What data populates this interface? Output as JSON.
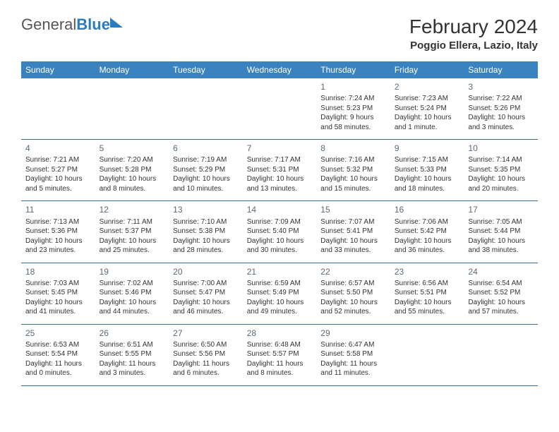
{
  "logo": {
    "text_gray": "General",
    "text_blue": "Blue"
  },
  "title": "February 2024",
  "location": "Poggio Ellera, Lazio, Italy",
  "colors": {
    "header_bg": "#3b83c0",
    "header_text": "#ffffff",
    "rule": "#3b6a94",
    "body_text": "#333333",
    "daynum": "#5a6a78",
    "logo_gray": "#555555",
    "logo_blue": "#2b7bbf"
  },
  "typography": {
    "title_fontsize": 28,
    "location_fontsize": 15,
    "dayname_fontsize": 12,
    "cell_fontsize": 10
  },
  "day_names": [
    "Sunday",
    "Monday",
    "Tuesday",
    "Wednesday",
    "Thursday",
    "Friday",
    "Saturday"
  ],
  "weeks": [
    [
      null,
      null,
      null,
      null,
      {
        "n": "1",
        "sr": "Sunrise: 7:24 AM",
        "ss": "Sunset: 5:23 PM",
        "dl1": "Daylight: 9 hours",
        "dl2": "and 58 minutes."
      },
      {
        "n": "2",
        "sr": "Sunrise: 7:23 AM",
        "ss": "Sunset: 5:24 PM",
        "dl1": "Daylight: 10 hours",
        "dl2": "and 1 minute."
      },
      {
        "n": "3",
        "sr": "Sunrise: 7:22 AM",
        "ss": "Sunset: 5:26 PM",
        "dl1": "Daylight: 10 hours",
        "dl2": "and 3 minutes."
      }
    ],
    [
      {
        "n": "4",
        "sr": "Sunrise: 7:21 AM",
        "ss": "Sunset: 5:27 PM",
        "dl1": "Daylight: 10 hours",
        "dl2": "and 5 minutes."
      },
      {
        "n": "5",
        "sr": "Sunrise: 7:20 AM",
        "ss": "Sunset: 5:28 PM",
        "dl1": "Daylight: 10 hours",
        "dl2": "and 8 minutes."
      },
      {
        "n": "6",
        "sr": "Sunrise: 7:19 AM",
        "ss": "Sunset: 5:29 PM",
        "dl1": "Daylight: 10 hours",
        "dl2": "and 10 minutes."
      },
      {
        "n": "7",
        "sr": "Sunrise: 7:17 AM",
        "ss": "Sunset: 5:31 PM",
        "dl1": "Daylight: 10 hours",
        "dl2": "and 13 minutes."
      },
      {
        "n": "8",
        "sr": "Sunrise: 7:16 AM",
        "ss": "Sunset: 5:32 PM",
        "dl1": "Daylight: 10 hours",
        "dl2": "and 15 minutes."
      },
      {
        "n": "9",
        "sr": "Sunrise: 7:15 AM",
        "ss": "Sunset: 5:33 PM",
        "dl1": "Daylight: 10 hours",
        "dl2": "and 18 minutes."
      },
      {
        "n": "10",
        "sr": "Sunrise: 7:14 AM",
        "ss": "Sunset: 5:35 PM",
        "dl1": "Daylight: 10 hours",
        "dl2": "and 20 minutes."
      }
    ],
    [
      {
        "n": "11",
        "sr": "Sunrise: 7:13 AM",
        "ss": "Sunset: 5:36 PM",
        "dl1": "Daylight: 10 hours",
        "dl2": "and 23 minutes."
      },
      {
        "n": "12",
        "sr": "Sunrise: 7:11 AM",
        "ss": "Sunset: 5:37 PM",
        "dl1": "Daylight: 10 hours",
        "dl2": "and 25 minutes."
      },
      {
        "n": "13",
        "sr": "Sunrise: 7:10 AM",
        "ss": "Sunset: 5:38 PM",
        "dl1": "Daylight: 10 hours",
        "dl2": "and 28 minutes."
      },
      {
        "n": "14",
        "sr": "Sunrise: 7:09 AM",
        "ss": "Sunset: 5:40 PM",
        "dl1": "Daylight: 10 hours",
        "dl2": "and 30 minutes."
      },
      {
        "n": "15",
        "sr": "Sunrise: 7:07 AM",
        "ss": "Sunset: 5:41 PM",
        "dl1": "Daylight: 10 hours",
        "dl2": "and 33 minutes."
      },
      {
        "n": "16",
        "sr": "Sunrise: 7:06 AM",
        "ss": "Sunset: 5:42 PM",
        "dl1": "Daylight: 10 hours",
        "dl2": "and 36 minutes."
      },
      {
        "n": "17",
        "sr": "Sunrise: 7:05 AM",
        "ss": "Sunset: 5:44 PM",
        "dl1": "Daylight: 10 hours",
        "dl2": "and 38 minutes."
      }
    ],
    [
      {
        "n": "18",
        "sr": "Sunrise: 7:03 AM",
        "ss": "Sunset: 5:45 PM",
        "dl1": "Daylight: 10 hours",
        "dl2": "and 41 minutes."
      },
      {
        "n": "19",
        "sr": "Sunrise: 7:02 AM",
        "ss": "Sunset: 5:46 PM",
        "dl1": "Daylight: 10 hours",
        "dl2": "and 44 minutes."
      },
      {
        "n": "20",
        "sr": "Sunrise: 7:00 AM",
        "ss": "Sunset: 5:47 PM",
        "dl1": "Daylight: 10 hours",
        "dl2": "and 46 minutes."
      },
      {
        "n": "21",
        "sr": "Sunrise: 6:59 AM",
        "ss": "Sunset: 5:49 PM",
        "dl1": "Daylight: 10 hours",
        "dl2": "and 49 minutes."
      },
      {
        "n": "22",
        "sr": "Sunrise: 6:57 AM",
        "ss": "Sunset: 5:50 PM",
        "dl1": "Daylight: 10 hours",
        "dl2": "and 52 minutes."
      },
      {
        "n": "23",
        "sr": "Sunrise: 6:56 AM",
        "ss": "Sunset: 5:51 PM",
        "dl1": "Daylight: 10 hours",
        "dl2": "and 55 minutes."
      },
      {
        "n": "24",
        "sr": "Sunrise: 6:54 AM",
        "ss": "Sunset: 5:52 PM",
        "dl1": "Daylight: 10 hours",
        "dl2": "and 57 minutes."
      }
    ],
    [
      {
        "n": "25",
        "sr": "Sunrise: 6:53 AM",
        "ss": "Sunset: 5:54 PM",
        "dl1": "Daylight: 11 hours",
        "dl2": "and 0 minutes."
      },
      {
        "n": "26",
        "sr": "Sunrise: 6:51 AM",
        "ss": "Sunset: 5:55 PM",
        "dl1": "Daylight: 11 hours",
        "dl2": "and 3 minutes."
      },
      {
        "n": "27",
        "sr": "Sunrise: 6:50 AM",
        "ss": "Sunset: 5:56 PM",
        "dl1": "Daylight: 11 hours",
        "dl2": "and 6 minutes."
      },
      {
        "n": "28",
        "sr": "Sunrise: 6:48 AM",
        "ss": "Sunset: 5:57 PM",
        "dl1": "Daylight: 11 hours",
        "dl2": "and 8 minutes."
      },
      {
        "n": "29",
        "sr": "Sunrise: 6:47 AM",
        "ss": "Sunset: 5:58 PM",
        "dl1": "Daylight: 11 hours",
        "dl2": "and 11 minutes."
      },
      null,
      null
    ]
  ]
}
